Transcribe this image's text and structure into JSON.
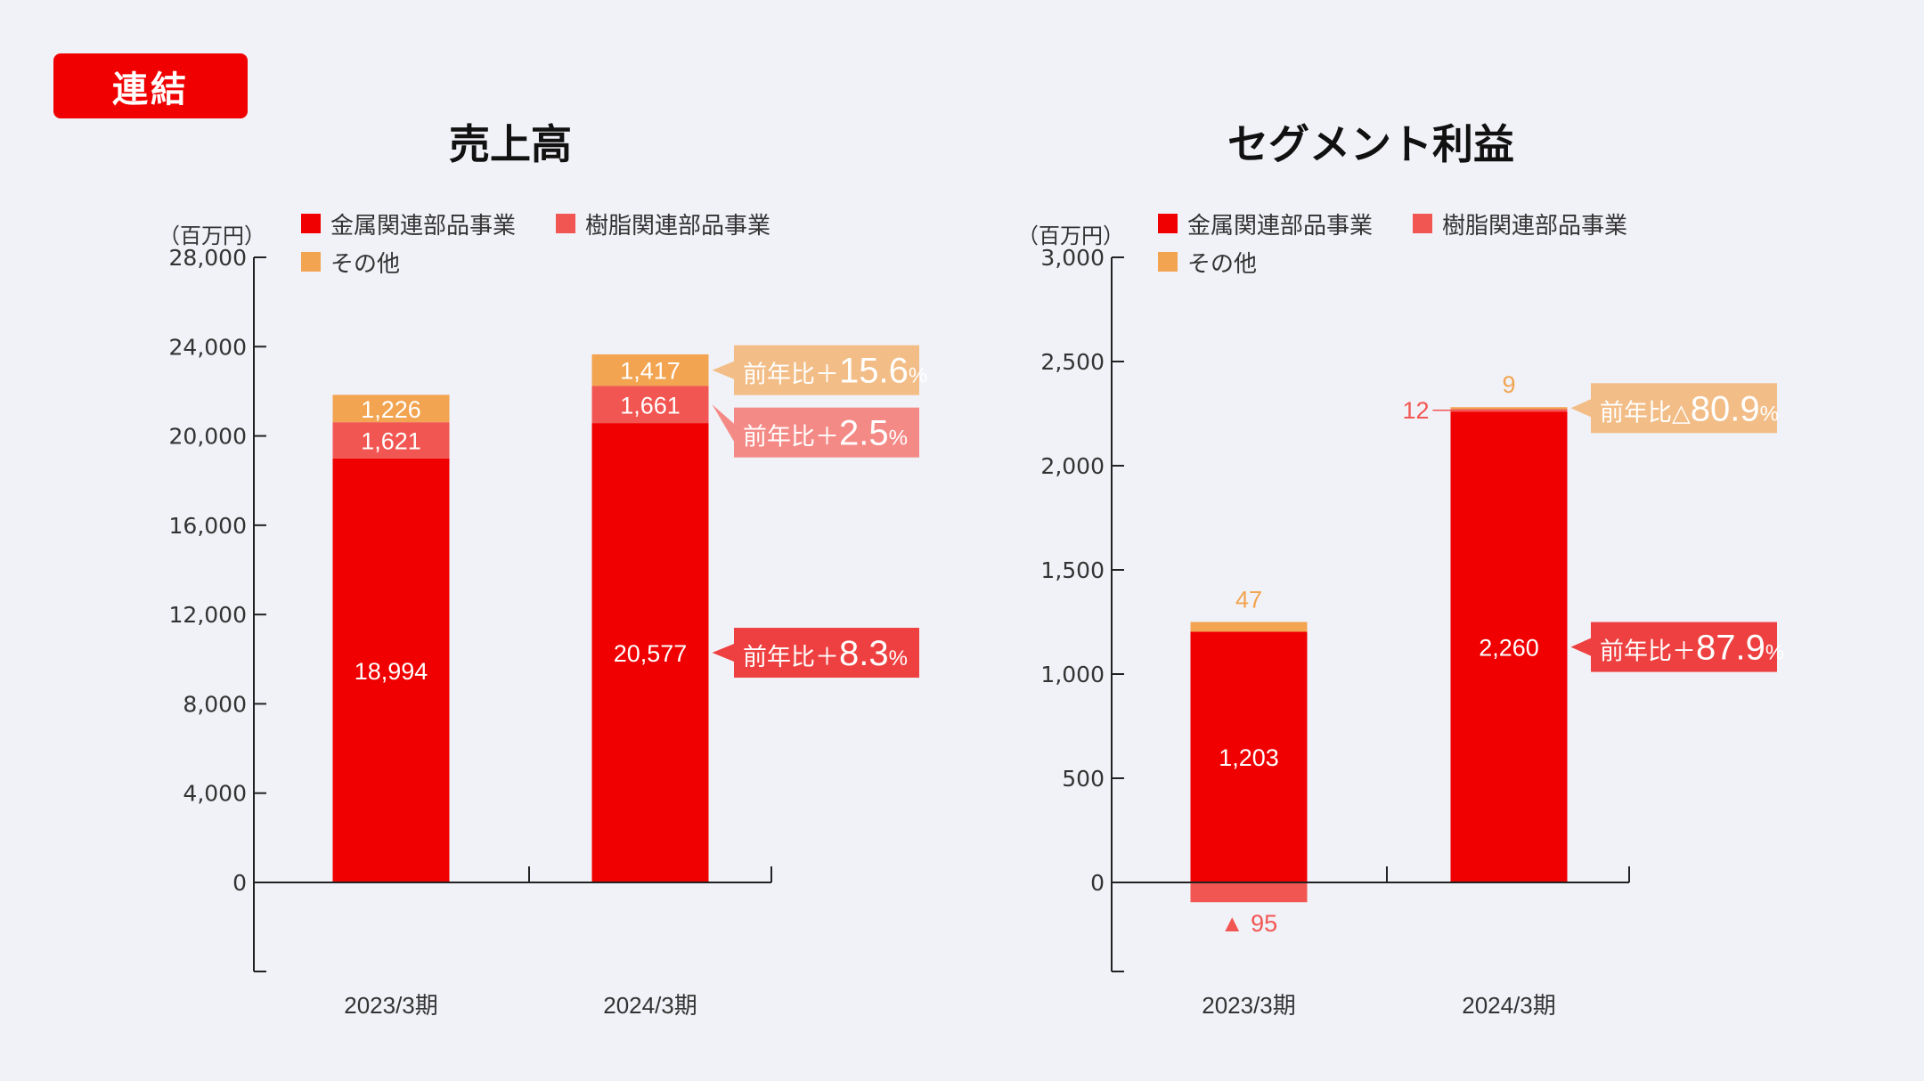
{
  "badge": "連結",
  "colors": {
    "metal": "#f00000",
    "resin": "#f25652",
    "other": "#f2a450",
    "badge_bg": "#f00000"
  },
  "legend": [
    "金属関連部品事業",
    "樹脂関連部品事業",
    "その他"
  ],
  "chart_data": [
    {
      "type": "bar",
      "stacked": true,
      "title": "売上高",
      "unit": "（百万円）",
      "categories": [
        "2023/3期",
        "2024/3期"
      ],
      "ylim": [
        0,
        28000
      ],
      "yticks": [
        0,
        4000,
        8000,
        12000,
        16000,
        20000,
        24000,
        28000
      ],
      "ytick_labels": [
        "0",
        "4,000",
        "8,000",
        "12,000",
        "16,000",
        "20,000",
        "24,000",
        "28,000"
      ],
      "series": [
        {
          "name": "金属関連部品事業",
          "values": [
            18994,
            20577
          ],
          "labels": [
            "18,994",
            "20,577"
          ],
          "color": "#f00000"
        },
        {
          "name": "樹脂関連部品事業",
          "values": [
            1621,
            1661
          ],
          "labels": [
            "1,621",
            "1,661"
          ],
          "color": "#f25652"
        },
        {
          "name": "その他",
          "values": [
            1226,
            1417
          ],
          "labels": [
            "1,226",
            "1,417"
          ],
          "color": "#f2a450"
        }
      ],
      "callouts": [
        {
          "series": "その他",
          "prefix": "前年比＋",
          "value": "15.6",
          "suffix": "%",
          "color": "#f2bd86"
        },
        {
          "series": "樹脂関連部品事業",
          "prefix": "前年比＋",
          "value": "2.5",
          "suffix": "%",
          "color": "#f48a86"
        },
        {
          "series": "金属関連部品事業",
          "prefix": "前年比＋",
          "value": "8.3",
          "suffix": "%",
          "color": "#ee4040"
        }
      ]
    },
    {
      "type": "bar",
      "stacked": true,
      "title": "セグメント利益",
      "unit": "（百万円）",
      "categories": [
        "2023/3期",
        "2024/3期"
      ],
      "ylim": [
        -400,
        3000
      ],
      "yticks": [
        0,
        500,
        1000,
        1500,
        2000,
        2500,
        3000
      ],
      "ytick_labels": [
        "0",
        "500",
        "1,000",
        "1,500",
        "2,000",
        "2,500",
        "3,000"
      ],
      "series": [
        {
          "name": "金属関連部品事業",
          "values": [
            1203,
            2260
          ],
          "labels": [
            "1,203",
            "2,260"
          ],
          "color": "#f00000"
        },
        {
          "name": "樹脂関連部品事業",
          "values": [
            -95,
            12
          ],
          "labels": [
            "▲ 95",
            "12"
          ],
          "color": "#f25652"
        },
        {
          "name": "その他",
          "values": [
            47,
            9
          ],
          "labels": [
            "47",
            "9"
          ],
          "color": "#f2a450"
        }
      ],
      "callouts": [
        {
          "series": "その他",
          "prefix": "前年比△",
          "value": "80.9",
          "suffix": "%",
          "color": "#f2bd86"
        },
        {
          "series": "金属関連部品事業",
          "prefix": "前年比＋",
          "value": "87.9",
          "suffix": "%",
          "color": "#ee4040"
        }
      ]
    }
  ]
}
